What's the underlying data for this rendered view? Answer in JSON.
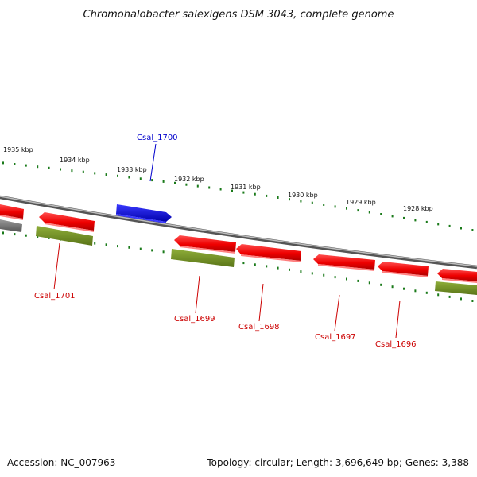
{
  "header": {
    "title": "Chromohalobacter salexigens DSM 3043, complete genome"
  },
  "footer": {
    "accession": "Accession: NC_007963",
    "summary": "Topology: circular; Length: 3,696,649 bp; Genes: 3,388"
  },
  "ruler": {
    "labels": [
      "1935 kbp",
      "1934 kbp",
      "1933 kbp",
      "1932 kbp",
      "1931 kbp",
      "1930 kbp",
      "1929 kbp",
      "1928 kbp"
    ]
  },
  "genes": {
    "labels": [
      "Csal_1700",
      "Csal_1701",
      "Csal_1699",
      "Csal_1698",
      "Csal_1697",
      "Csal_1696"
    ]
  },
  "colors": {
    "forward_gene": "#0000ee",
    "reverse_gene": "#ee0000",
    "rna_track": "#6e8b1e",
    "backbone": "#888888",
    "tick": "#1a7a1a",
    "label_red": "#cc0000",
    "label_blue": "#0000cc"
  }
}
